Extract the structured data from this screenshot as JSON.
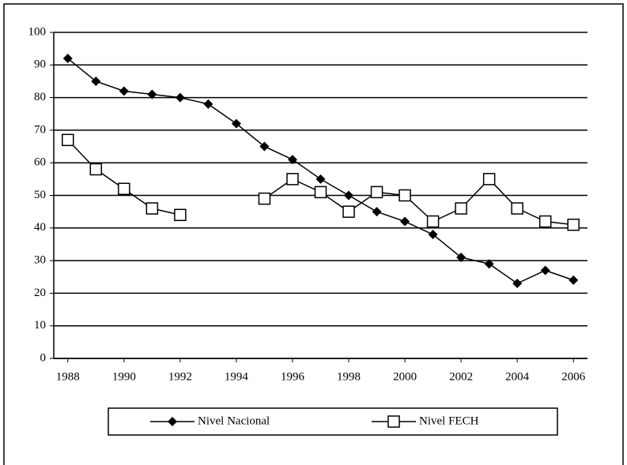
{
  "chart_data": {
    "type": "line",
    "x": [
      1988,
      1989,
      1990,
      1991,
      1992,
      1993,
      1994,
      1995,
      1996,
      1997,
      1998,
      1999,
      2000,
      2001,
      2002,
      2003,
      2004,
      2005,
      2006
    ],
    "series": [
      {
        "name": "Nivel Nacional",
        "color": "#000000",
        "marker": "diamond",
        "values": [
          92,
          85,
          82,
          81,
          80,
          78,
          72,
          65,
          61,
          55,
          50,
          45,
          42,
          38,
          31,
          29,
          23,
          27,
          24
        ]
      },
      {
        "name": "Nivel FECH",
        "color": "#000000",
        "marker": "square",
        "values": [
          67,
          58,
          52,
          46,
          44,
          null,
          null,
          49,
          55,
          51,
          45,
          51,
          50,
          42,
          46,
          55,
          46,
          42,
          41
        ]
      }
    ],
    "xlim": [
      1987.5,
      2006.5
    ],
    "xticks": [
      1988,
      1990,
      1992,
      1994,
      1996,
      1998,
      2000,
      2002,
      2004,
      2006
    ],
    "ylim": [
      0,
      100
    ],
    "yticks": [
      0,
      10,
      20,
      30,
      40,
      50,
      60,
      70,
      80,
      90,
      100
    ],
    "grid": true,
    "legend": "bottom"
  }
}
